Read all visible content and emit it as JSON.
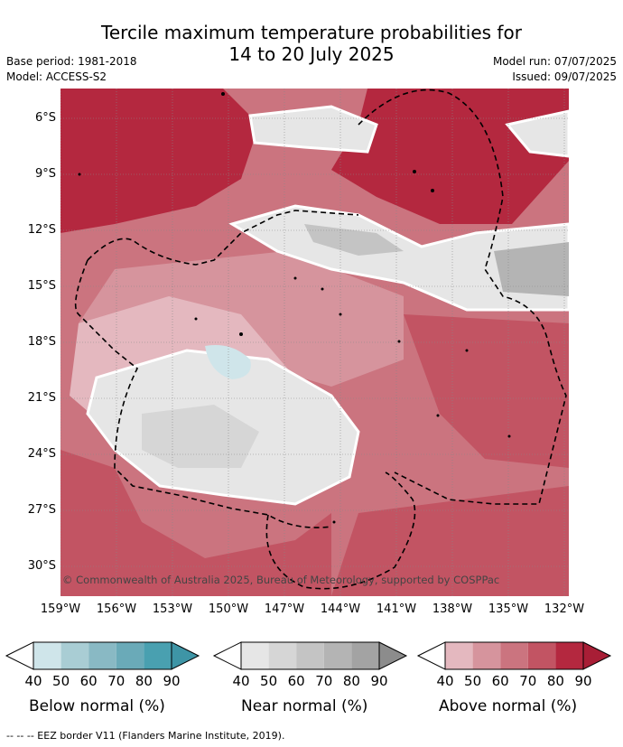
{
  "title": {
    "line1": "Tercile maximum temperature probabilities for",
    "line2": "14 to 20 July 2025"
  },
  "meta": {
    "base_period": "Base period: 1981-2018",
    "model": "Model: ACCESS-S2",
    "model_run": "Model run: 07/07/2025",
    "issued": "Issued: 09/07/2025"
  },
  "map": {
    "latitudes": [
      "6°S",
      "9°S",
      "12°S",
      "15°S",
      "18°S",
      "21°S",
      "24°S",
      "27°S",
      "30°S"
    ],
    "longitudes": [
      "159°W",
      "156°W",
      "153°W",
      "150°W",
      "147°W",
      "144°W",
      "141°W",
      "138°W",
      "135°W",
      "132°W"
    ],
    "copyright": "© Commonwealth of Australia 2025, Bureau of Meteorology, supported by COSPPac"
  },
  "legends": [
    {
      "id": "below",
      "label": "Below normal (%)",
      "ticks": [
        "40",
        "50",
        "60",
        "70",
        "80",
        "90"
      ],
      "colors": [
        "#cfe5ea",
        "#a9cdd4",
        "#89b9c4",
        "#6aaab8",
        "#49a0b0"
      ]
    },
    {
      "id": "near",
      "label": "Near normal (%)",
      "ticks": [
        "40",
        "50",
        "60",
        "70",
        "80",
        "90"
      ],
      "colors": [
        "#e6e6e6",
        "#d6d6d6",
        "#c4c4c4",
        "#b4b4b4",
        "#a3a3a3"
      ]
    },
    {
      "id": "above",
      "label": "Above normal (%)",
      "ticks": [
        "40",
        "50",
        "60",
        "70",
        "80",
        "90"
      ],
      "colors": [
        "#e4b8bf",
        "#d6949d",
        "#cb747f",
        "#c25463",
        "#b4283f"
      ]
    }
  ],
  "footer": {
    "eez": "--  --  -- EEZ border V11 (Flanders Marine Institute, 2019)."
  },
  "colors": {
    "above_light": "#e4b8bf",
    "above_dark": "#b4283f",
    "near_light": "#e6e6e6",
    "below_light": "#cfe5ea"
  }
}
